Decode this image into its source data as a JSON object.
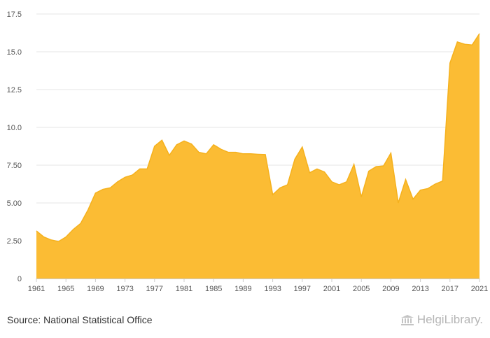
{
  "source_text": "Source: National Statistical Office",
  "logo": {
    "text": "HelgiLibrary.",
    "icon": "building-columns-icon"
  },
  "colors": {
    "area_fill": "#fbbc34",
    "area_stroke": "#f5b11d",
    "grid": "#e6e6e6",
    "axis": "#cccccc"
  },
  "chart_data": {
    "type": "area",
    "title": "",
    "xlabel": "",
    "ylabel": "",
    "ylim": [
      0,
      17.5
    ],
    "yticks": [
      0,
      2.5,
      5,
      7.5,
      10,
      12.5,
      15,
      17.5
    ],
    "ytick_labels": [
      "0",
      "2.50",
      "5.00",
      "7.50",
      "10.0",
      "12.5",
      "15.0",
      "17.5"
    ],
    "xticks": [
      1961,
      1965,
      1969,
      1973,
      1977,
      1981,
      1985,
      1989,
      1993,
      1997,
      2001,
      2005,
      2009,
      2013,
      2017,
      2021
    ],
    "xtick_labels": [
      "1961",
      "1965",
      "1969",
      "1973",
      "1977",
      "1981",
      "1985",
      "1989",
      "1993",
      "1997",
      "2001",
      "2005",
      "2009",
      "2013",
      "2017",
      "2021"
    ],
    "grid": "horizontal",
    "legend": "none",
    "x": [
      1961,
      1962,
      1963,
      1964,
      1965,
      1966,
      1967,
      1968,
      1969,
      1970,
      1971,
      1972,
      1973,
      1974,
      1975,
      1976,
      1977,
      1978,
      1979,
      1980,
      1981,
      1982,
      1983,
      1984,
      1985,
      1986,
      1987,
      1988,
      1989,
      1990,
      1991,
      1992,
      1993,
      1994,
      1995,
      1996,
      1997,
      1998,
      1999,
      2000,
      2001,
      2002,
      2003,
      2004,
      2005,
      2006,
      2007,
      2008,
      2009,
      2010,
      2011,
      2012,
      2013,
      2014,
      2015,
      2016,
      2017,
      2018,
      2019,
      2020,
      2021
    ],
    "series": [
      {
        "values": [
          3.15,
          2.75,
          2.55,
          2.45,
          2.75,
          3.25,
          3.65,
          4.55,
          5.65,
          5.9,
          6.0,
          6.4,
          6.7,
          6.85,
          7.25,
          7.25,
          8.75,
          9.15,
          8.15,
          8.85,
          9.1,
          8.9,
          8.35,
          8.25,
          8.85,
          8.55,
          8.35,
          8.35,
          8.25,
          8.25,
          8.22,
          8.2,
          5.55,
          6.0,
          6.2,
          7.9,
          8.7,
          7.0,
          7.25,
          7.05,
          6.4,
          6.2,
          6.4,
          7.55,
          5.4,
          7.1,
          7.4,
          7.45,
          8.3,
          5.0,
          6.55,
          5.25,
          5.85,
          5.95,
          6.25,
          6.45,
          14.25,
          15.65,
          15.5,
          15.45,
          16.2
        ]
      }
    ]
  }
}
